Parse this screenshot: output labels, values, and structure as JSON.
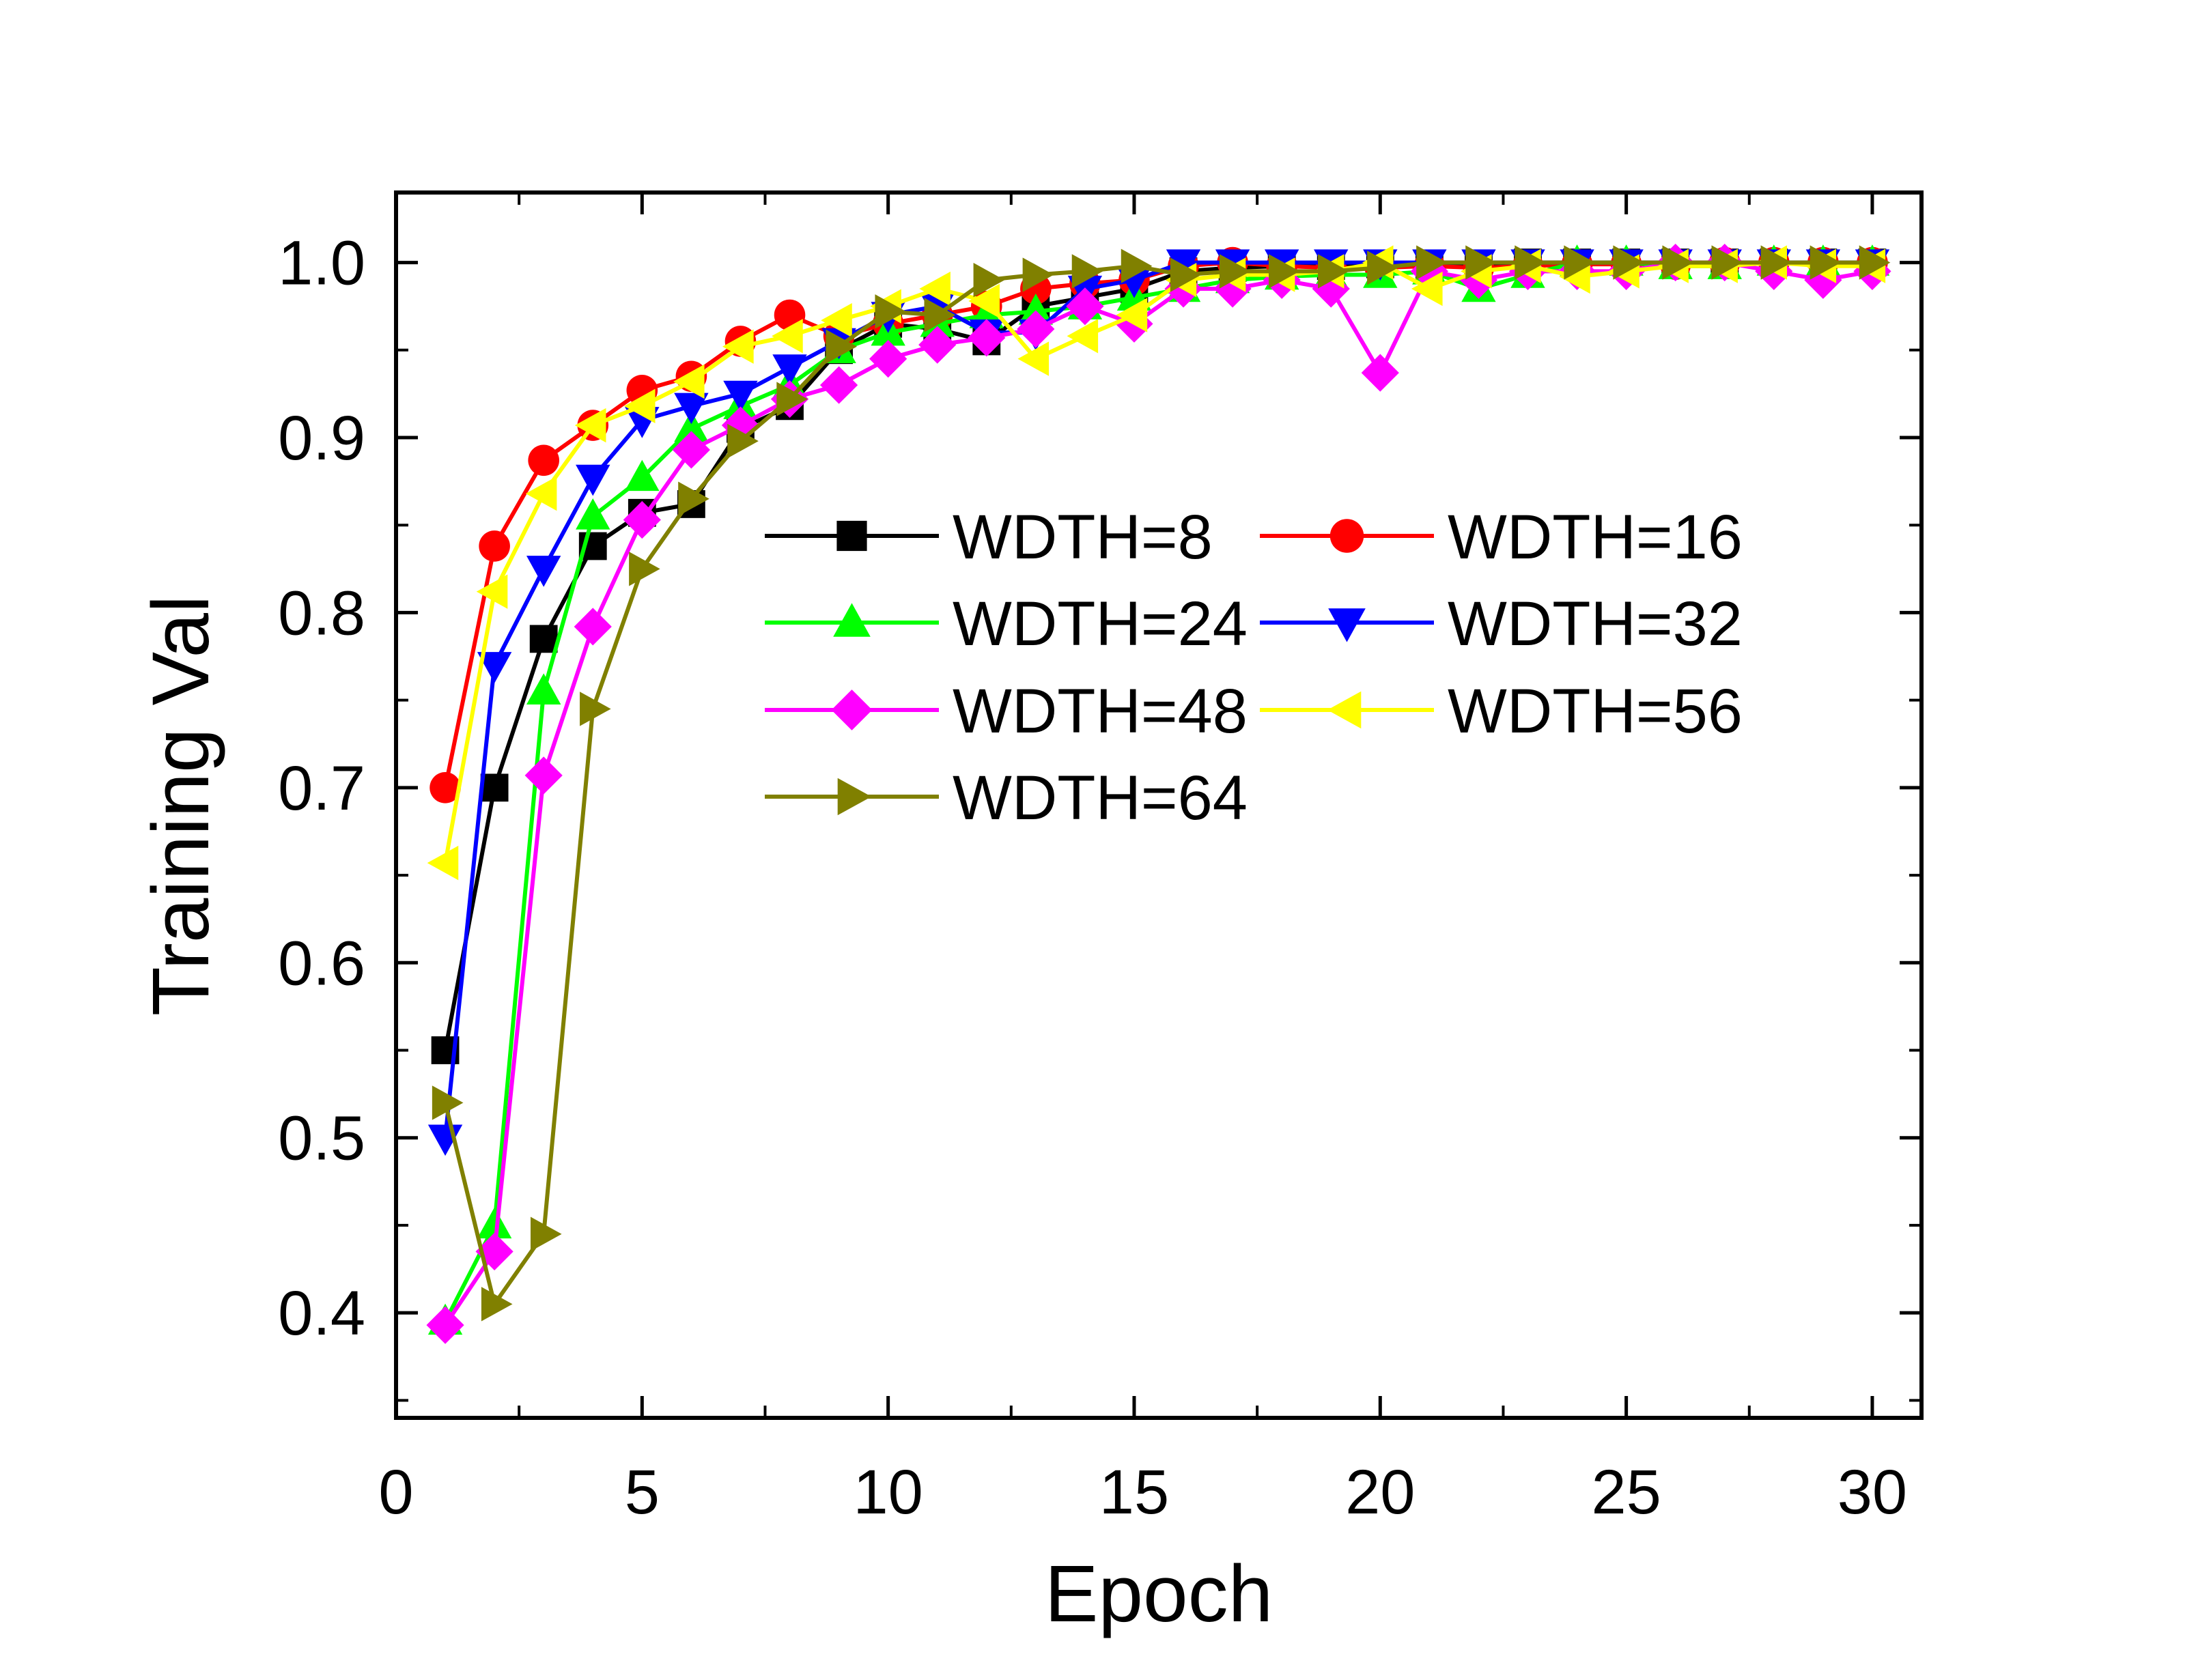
{
  "chart_data": {
    "type": "line",
    "xlabel": "Epoch",
    "ylabel": "Training Val",
    "title": "",
    "xlim": [
      0,
      31
    ],
    "ylim": [
      0.34,
      1.04
    ],
    "xticks": [
      0,
      5,
      10,
      15,
      20,
      25,
      30
    ],
    "yticks": [
      0.4,
      0.5,
      0.6,
      0.7,
      0.8,
      0.9,
      1.0
    ],
    "xtick_labels": [
      "0",
      "5",
      "10",
      "15",
      "20",
      "25",
      "30"
    ],
    "ytick_labels": [
      "0.4",
      "0.5",
      "0.6",
      "0.7",
      "0.8",
      "0.9",
      "1.0"
    ],
    "legend_position": "center",
    "grid": false,
    "x": [
      1,
      2,
      3,
      4,
      5,
      6,
      7,
      8,
      9,
      10,
      11,
      12,
      13,
      14,
      15,
      16,
      17,
      18,
      19,
      20,
      21,
      22,
      23,
      24,
      25,
      26,
      27,
      28,
      29,
      30
    ],
    "series": [
      {
        "name": "WDTH=8",
        "color": "#000000",
        "marker": "square",
        "values": [
          0.55,
          0.7,
          0.785,
          0.838,
          0.857,
          0.862,
          0.905,
          0.918,
          0.95,
          0.965,
          0.962,
          0.955,
          0.975,
          0.98,
          0.985,
          0.995,
          0.997,
          0.998,
          0.998,
          0.999,
          0.999,
          0.999,
          1.0,
          1.0,
          1.0,
          1.0,
          1.0,
          1.0,
          1.0,
          1.0
        ]
      },
      {
        "name": "WDTH=16",
        "color": "#ff0000",
        "marker": "circle",
        "values": [
          0.7,
          0.838,
          0.887,
          0.907,
          0.927,
          0.935,
          0.955,
          0.97,
          0.958,
          0.965,
          0.97,
          0.975,
          0.985,
          0.988,
          0.99,
          0.998,
          1.0,
          0.998,
          0.997,
          0.997,
          0.998,
          0.997,
          0.998,
          0.999,
          0.999,
          0.999,
          1.0,
          1.0,
          1.0,
          1.0
        ]
      },
      {
        "name": "WDTH=24",
        "color": "#00ff00",
        "marker": "triangle-up",
        "values": [
          0.395,
          0.45,
          0.755,
          0.855,
          0.877,
          0.905,
          0.918,
          0.93,
          0.95,
          0.96,
          0.965,
          0.97,
          0.972,
          0.975,
          0.98,
          0.985,
          0.99,
          0.992,
          0.993,
          0.993,
          0.995,
          0.985,
          0.993,
          1.0,
          1.0,
          0.998,
          0.998,
          1.0,
          1.0,
          1.0
        ]
      },
      {
        "name": "WDTH=32",
        "color": "#0000ff",
        "marker": "triangle-down",
        "values": [
          0.5,
          0.77,
          0.825,
          0.877,
          0.91,
          0.918,
          0.925,
          0.94,
          0.955,
          0.97,
          0.975,
          0.96,
          0.96,
          0.985,
          0.99,
          1.0,
          1.0,
          1.0,
          1.0,
          1.0,
          1.0,
          1.0,
          1.0,
          1.0,
          1.0,
          1.0,
          1.0,
          1.0,
          1.0,
          1.0
        ]
      },
      {
        "name": "WDTH=48",
        "color": "#ff00ff",
        "marker": "diamond",
        "values": [
          0.393,
          0.435,
          0.707,
          0.792,
          0.853,
          0.893,
          0.907,
          0.922,
          0.93,
          0.945,
          0.953,
          0.957,
          0.962,
          0.975,
          0.965,
          0.985,
          0.985,
          0.99,
          0.985,
          0.937,
          0.995,
          0.99,
          0.995,
          0.995,
          0.995,
          1.0,
          1.0,
          0.995,
          0.99,
          0.995
        ]
      },
      {
        "name": "WDTH=56",
        "color": "#ffff00",
        "marker": "triangle-left",
        "values": [
          0.657,
          0.812,
          0.868,
          0.907,
          0.918,
          0.932,
          0.952,
          0.958,
          0.967,
          0.975,
          0.985,
          0.978,
          0.945,
          0.958,
          0.97,
          0.99,
          0.993,
          0.993,
          0.995,
          1.0,
          0.985,
          0.995,
          0.998,
          0.992,
          0.995,
          0.998,
          0.998,
          1.0,
          0.998,
          0.998
        ]
      },
      {
        "name": "WDTH=64",
        "color": "#808000",
        "marker": "triangle-right",
        "values": [
          0.52,
          0.405,
          0.445,
          0.745,
          0.825,
          0.865,
          0.898,
          0.922,
          0.952,
          0.972,
          0.97,
          0.99,
          0.993,
          0.995,
          0.998,
          0.993,
          0.995,
          0.995,
          0.995,
          0.997,
          1.0,
          1.0,
          1.0,
          1.0,
          1.0,
          1.0,
          1.0,
          1.0,
          1.0,
          1.0
        ]
      }
    ]
  }
}
